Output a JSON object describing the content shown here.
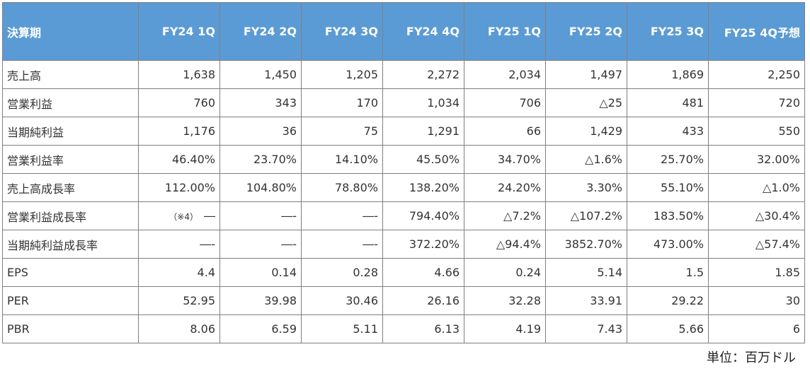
{
  "table": {
    "headers": [
      "決算期",
      "FY24 1Q",
      "FY24 2Q",
      "FY24 3Q",
      "FY24 4Q",
      "FY25 1Q",
      "FY25 2Q",
      "FY25 3Q",
      "FY25 4Q予想"
    ],
    "rows": [
      [
        "売上高",
        "1,638",
        "1,450",
        "1,205",
        "2,272",
        "2,034",
        "1,497",
        "1,869",
        "2,250"
      ],
      [
        "営業利益",
        "760",
        "343",
        "170",
        "1,034",
        "706",
        "△25",
        "481",
        "720"
      ],
      [
        "当期純利益",
        "1,176",
        "36",
        "75",
        "1,291",
        "66",
        "1,429",
        "433",
        "550"
      ],
      [
        "営業利益率",
        "46.40%",
        "23.70%",
        "14.10%",
        "45.50%",
        "34.70%",
        "△1.6%",
        "25.70%",
        "32.00%"
      ],
      [
        "売上高成長率",
        "112.00%",
        "104.80%",
        "78.80%",
        "138.20%",
        "24.20%",
        "3.30%",
        "55.10%",
        "△1.0%"
      ],
      [
        "営業利益成長率",
        "―",
        "―-",
        "―-",
        "794.40%",
        "△7.2%",
        "△107.2%",
        "183.50%",
        "△30.4%"
      ],
      [
        "当期純利益成長率",
        "―-",
        "―-",
        "―-",
        "372.20%",
        "△94.4%",
        "3852.70%",
        "473.00%",
        "△57.4%"
      ],
      [
        "EPS",
        "4.4",
        "0.14",
        "0.28",
        "4.66",
        "0.24",
        "5.14",
        "1.5",
        "1.85"
      ],
      [
        "PER",
        "52.95",
        "39.98",
        "30.46",
        "26.16",
        "32.28",
        "33.91",
        "29.22",
        "30"
      ],
      [
        "PBR",
        "8.06",
        "6.59",
        "5.11",
        "6.13",
        "4.19",
        "7.43",
        "5.66",
        "6"
      ]
    ],
    "note": "（※4）"
  },
  "unit_label": "単位：百万ドル"
}
